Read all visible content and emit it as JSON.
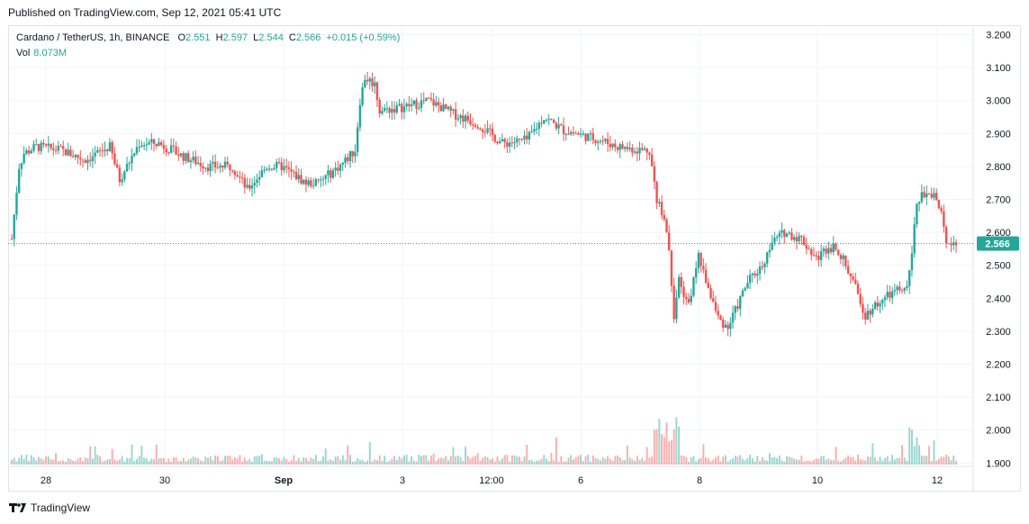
{
  "header": {
    "published": "Published on TradingView.com, Sep 12, 2021 05:41 UTC"
  },
  "legend": {
    "symbol": "Cardano / TetherUS, 1h, BINANCE",
    "o_label": "O",
    "o_value": "2.551",
    "h_label": "H",
    "h_value": "2.597",
    "l_label": "L",
    "l_value": "2.544",
    "c_label": "C",
    "c_value": "2.566",
    "change": "+0.015 (+0.59%)",
    "vol_label": "Vol",
    "vol_value": "8.073M"
  },
  "footer": {
    "brand": "TradingView"
  },
  "colors": {
    "up": "#26a69a",
    "down": "#ef5350",
    "grid": "#f0f3fa",
    "text": "#131722"
  },
  "chart_data": {
    "type": "candlestick",
    "title": "Cardano / TetherUS, 1h, BINANCE",
    "ylim": [
      1.9,
      3.22
    ],
    "y_ticks": [
      "3.200",
      "3.100",
      "3.000",
      "2.900",
      "2.800",
      "2.700",
      "2.600",
      "2.500",
      "2.400",
      "2.300",
      "2.200",
      "2.100",
      "2.000",
      "1.900"
    ],
    "x_ticks": [
      "28",
      "30",
      "Sep",
      "3",
      "12:00",
      "6",
      "8",
      "10",
      "12"
    ],
    "last_price": "2.566",
    "grid": true,
    "price_path": [
      [
        0,
        2.58
      ],
      [
        3,
        2.8
      ],
      [
        5,
        2.84
      ],
      [
        10,
        2.86
      ],
      [
        20,
        2.85
      ],
      [
        30,
        2.82
      ],
      [
        40,
        2.86
      ],
      [
        44,
        2.76
      ],
      [
        52,
        2.87
      ],
      [
        60,
        2.87
      ],
      [
        70,
        2.83
      ],
      [
        80,
        2.8
      ],
      [
        90,
        2.8
      ],
      [
        96,
        2.73
      ],
      [
        104,
        2.8
      ],
      [
        110,
        2.8
      ],
      [
        120,
        2.75
      ],
      [
        125,
        2.75
      ],
      [
        135,
        2.81
      ],
      [
        140,
        2.85
      ],
      [
        142,
        3.0
      ],
      [
        144,
        3.07
      ],
      [
        148,
        3.05
      ],
      [
        150,
        2.97
      ],
      [
        160,
        2.98
      ],
      [
        170,
        3.0
      ],
      [
        180,
        2.96
      ],
      [
        190,
        2.93
      ],
      [
        195,
        2.9
      ],
      [
        200,
        2.87
      ],
      [
        210,
        2.88
      ],
      [
        217,
        2.95
      ],
      [
        225,
        2.91
      ],
      [
        240,
        2.88
      ],
      [
        247,
        2.86
      ],
      [
        256,
        2.85
      ],
      [
        260,
        2.85
      ],
      [
        263,
        2.7
      ],
      [
        266,
        2.65
      ],
      [
        268,
        2.55
      ],
      [
        270,
        2.35
      ],
      [
        272,
        2.45
      ],
      [
        276,
        2.38
      ],
      [
        280,
        2.53
      ],
      [
        284,
        2.43
      ],
      [
        288,
        2.34
      ],
      [
        292,
        2.31
      ],
      [
        296,
        2.38
      ],
      [
        300,
        2.45
      ],
      [
        306,
        2.5
      ],
      [
        310,
        2.57
      ],
      [
        315,
        2.6
      ],
      [
        322,
        2.58
      ],
      [
        328,
        2.52
      ],
      [
        332,
        2.55
      ],
      [
        336,
        2.56
      ],
      [
        342,
        2.47
      ],
      [
        348,
        2.35
      ],
      [
        352,
        2.38
      ],
      [
        356,
        2.4
      ],
      [
        360,
        2.42
      ],
      [
        365,
        2.43
      ],
      [
        367,
        2.55
      ],
      [
        369,
        2.7
      ],
      [
        372,
        2.72
      ],
      [
        376,
        2.72
      ],
      [
        379,
        2.65
      ],
      [
        381,
        2.58
      ],
      [
        385,
        2.566
      ]
    ],
    "volume_range": [
      0,
      30
    ]
  }
}
